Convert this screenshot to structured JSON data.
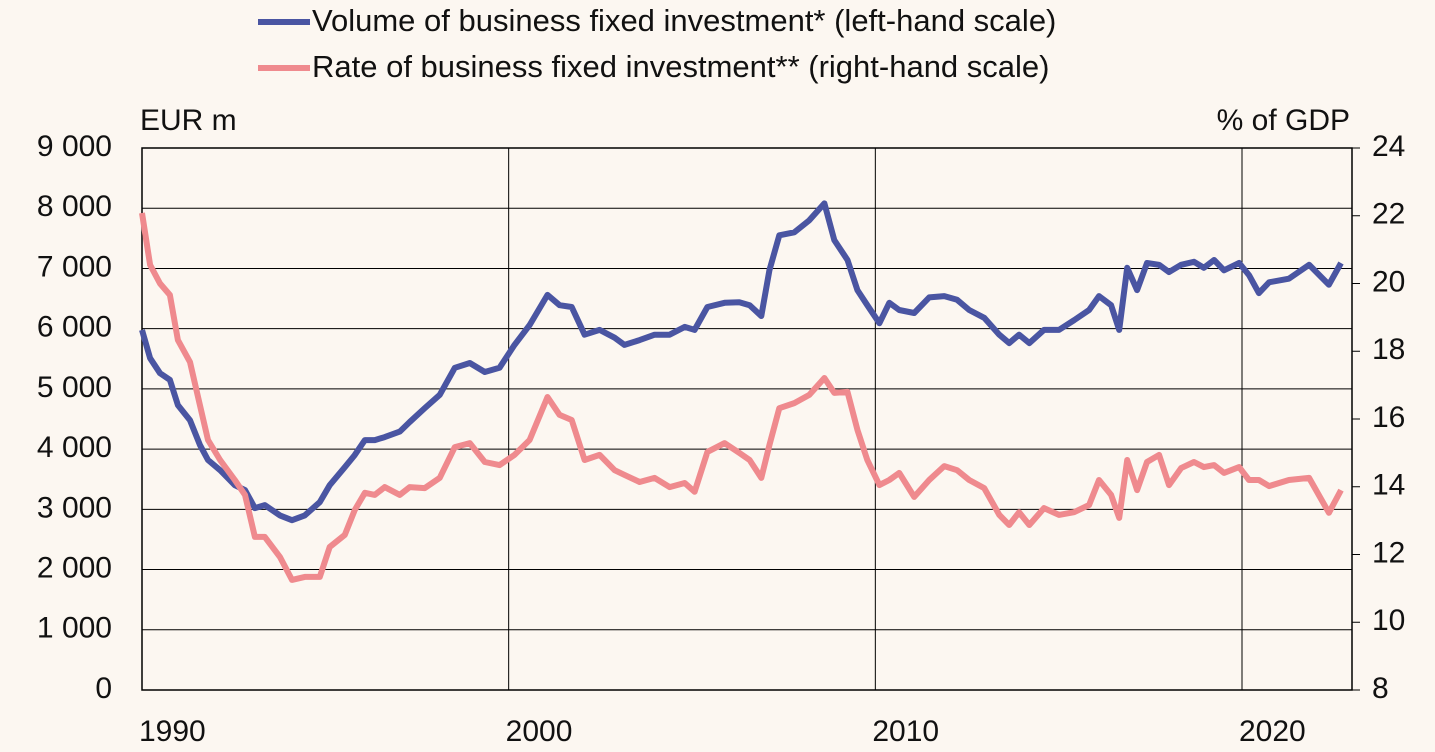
{
  "chart_data": {
    "type": "line",
    "legend": "top",
    "ylabel": "EUR m",
    "y2label": "% of GDP",
    "xlim": [
      1990,
      2023
    ],
    "xticks": [
      1990,
      2000,
      2010,
      2020
    ],
    "ylim": [
      0,
      9000
    ],
    "yticks": [
      0,
      {
        "value": 1000,
        "label": "1 000"
      },
      {
        "value": 2000,
        "label": "2 000"
      },
      {
        "value": 3000,
        "label": "3 000"
      },
      {
        "value": 4000,
        "label": "4 000"
      },
      {
        "value": 5000,
        "label": "5 000"
      },
      {
        "value": 6000,
        "label": "6 000"
      },
      {
        "value": 7000,
        "label": "7 000"
      },
      {
        "value": 8000,
        "label": "8 000"
      },
      {
        "value": 9000,
        "label": "9 000"
      }
    ],
    "y2lim": [
      8,
      24
    ],
    "y2ticks": [
      8,
      10,
      12,
      14,
      16,
      18,
      20,
      22,
      24
    ],
    "grid": true,
    "x": [
      1990.0,
      1990.22,
      1990.49,
      1990.76,
      1990.98,
      1991.31,
      1991.58,
      1991.8,
      1992.13,
      1992.53,
      1992.81,
      1993.08,
      1993.35,
      1993.76,
      1994.09,
      1994.44,
      1994.85,
      1995.12,
      1995.53,
      1995.8,
      1996.08,
      1996.35,
      1996.62,
      1997.03,
      1997.3,
      1997.71,
      1998.12,
      1998.53,
      1998.94,
      1999.35,
      1999.75,
      2000.16,
      2000.57,
      2001.06,
      2001.39,
      2001.72,
      2002.07,
      2002.48,
      2002.89,
      2003.16,
      2003.57,
      2003.98,
      2004.39,
      2004.8,
      2005.07,
      2005.42,
      2005.89,
      2006.29,
      2006.57,
      2006.89,
      2007.11,
      2007.38,
      2007.79,
      2008.2,
      2008.61,
      2008.88,
      2009.24,
      2009.51,
      2009.78,
      2010.11,
      2010.38,
      2010.65,
      2011.06,
      2011.47,
      2011.88,
      2012.23,
      2012.56,
      2012.97,
      2013.38,
      2013.65,
      2013.92,
      2014.2,
      2014.6,
      2015.01,
      2015.42,
      2015.83,
      2016.1,
      2016.43,
      2016.65,
      2016.87,
      2017.14,
      2017.41,
      2017.74,
      2018.01,
      2018.34,
      2018.69,
      2018.96,
      2019.24,
      2019.51,
      2019.92,
      2020.19,
      2020.46,
      2020.74,
      2021.28,
      2021.83,
      2022.37,
      2022.7
    ],
    "series": [
      {
        "name": "Volume of business fixed investment* (left-hand scale)",
        "color": "#4a55a2",
        "axis": "y",
        "values": [
          5980,
          5510,
          5260,
          5150,
          4730,
          4480,
          4070,
          3820,
          3650,
          3400,
          3320,
          3020,
          3070,
          2900,
          2820,
          2900,
          3120,
          3400,
          3700,
          3900,
          4150,
          4150,
          4200,
          4290,
          4450,
          4680,
          4900,
          5350,
          5430,
          5280,
          5350,
          5730,
          6060,
          6560,
          6390,
          6360,
          5900,
          5980,
          5850,
          5730,
          5810,
          5900,
          5900,
          6030,
          5980,
          6360,
          6430,
          6440,
          6390,
          6210,
          6970,
          7550,
          7600,
          7800,
          8080,
          7470,
          7140,
          6640,
          6390,
          6090,
          6430,
          6310,
          6260,
          6520,
          6540,
          6480,
          6310,
          6180,
          5900,
          5760,
          5900,
          5760,
          5980,
          5980,
          6140,
          6310,
          6540,
          6390,
          5980,
          7010,
          6640,
          7090,
          7060,
          6940,
          7060,
          7110,
          7010,
          7140,
          6970,
          7090,
          6890,
          6590,
          6770,
          6830,
          7060,
          6730,
          7090
        ]
      },
      {
        "name": "Rate of business fixed investment** (right-hand scale)",
        "color": "#ef8a8e",
        "axis": "y2",
        "values": [
          22.08,
          20.55,
          20.0,
          19.66,
          18.33,
          17.68,
          16.41,
          15.38,
          14.79,
          14.2,
          13.76,
          12.52,
          12.52,
          11.93,
          11.25,
          11.34,
          11.34,
          12.22,
          12.58,
          13.31,
          13.82,
          13.76,
          13.99,
          13.76,
          13.99,
          13.96,
          14.26,
          15.17,
          15.29,
          14.73,
          14.64,
          14.94,
          15.38,
          16.65,
          16.12,
          15.97,
          14.79,
          14.94,
          14.49,
          14.35,
          14.14,
          14.26,
          13.99,
          14.11,
          13.85,
          15.03,
          15.29,
          15.0,
          14.79,
          14.26,
          15.23,
          16.32,
          16.47,
          16.71,
          17.21,
          16.77,
          16.8,
          15.68,
          14.79,
          14.05,
          14.2,
          14.41,
          13.7,
          14.2,
          14.61,
          14.49,
          14.2,
          13.96,
          13.17,
          12.87,
          13.25,
          12.87,
          13.37,
          13.17,
          13.25,
          13.46,
          14.2,
          13.76,
          13.08,
          14.79,
          13.9,
          14.73,
          14.94,
          14.05,
          14.55,
          14.73,
          14.58,
          14.64,
          14.41,
          14.58,
          14.2,
          14.2,
          14.02,
          14.2,
          14.26,
          13.23,
          13.9
        ]
      }
    ]
  }
}
